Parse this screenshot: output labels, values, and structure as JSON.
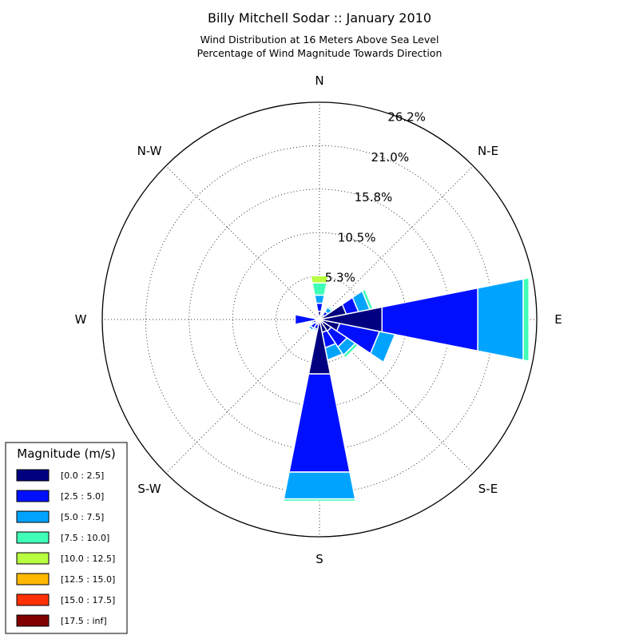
{
  "chart_data": {
    "type": "windrose",
    "title": "Billy Mitchell Sodar :: January 2010",
    "subtitle_lines": [
      "Wind Distribution at 16 Meters Above Sea Level",
      "Percentage of Wind Magnitude Towards Direction"
    ],
    "directions": [
      "N",
      "N-E",
      "E",
      "S-E",
      "S",
      "S-W",
      "W",
      "N-W"
    ],
    "ring_labels": [
      "5.3%",
      "10.5%",
      "15.8%",
      "21.0%",
      "26.2%"
    ],
    "ring_values": [
      5.25,
      10.5,
      15.75,
      21.0,
      26.25
    ],
    "r_max": 26.25,
    "legend": {
      "title": "Magnitude (m/s)",
      "entries": [
        "[0.0 : 2.5]",
        "[2.5 : 5.0]",
        "[5.0 : 7.5]",
        "[7.5 : 10.0]",
        "[10.0 : 12.5]",
        "[12.5 : 15.0]",
        "[15.0 : 17.5]",
        "[17.5 : inf]"
      ]
    },
    "colors": [
      "#000080",
      "#0010ff",
      "#00a4ff",
      "#40ffb7",
      "#b7ff40",
      "#ffb900",
      "#ff3000",
      "#800000"
    ],
    "sector_width_deg": 22.5,
    "sectors": [
      {
        "angle": 0,
        "stacks": [
          0.0,
          1.0,
          2.0,
          3.0,
          4.5,
          5.4
        ]
      },
      {
        "angle": 22.5,
        "stacks": [
          0.0,
          0.2,
          0.4,
          0.6,
          0.7
        ]
      },
      {
        "angle": 45,
        "stacks": [
          0.0,
          0.7,
          1.2,
          1.8,
          2.0
        ]
      },
      {
        "angle": 67.5,
        "stacks": [
          0.0,
          3.3,
          4.8,
          6.2,
          6.6
        ]
      },
      {
        "angle": 90,
        "stacks": [
          0.0,
          7.7,
          19.5,
          25.1,
          25.8
        ]
      },
      {
        "angle": 112.5,
        "stacks": [
          0.0,
          2.5,
          7.4,
          9.3
        ]
      },
      {
        "angle": 135,
        "stacks": [
          0.0,
          1.7,
          4.0,
          5.2,
          5.6
        ]
      },
      {
        "angle": 157.5,
        "stacks": [
          0.0,
          1.6,
          3.5,
          5.0
        ]
      },
      {
        "angle": 180,
        "stacks": [
          0.0,
          6.7,
          18.8,
          22.1,
          22.4
        ]
      },
      {
        "angle": 202.5,
        "stacks": [
          0.0,
          0.6,
          1.2,
          1.4
        ]
      },
      {
        "angle": 225,
        "stacks": [
          0.0,
          0.6,
          1.3,
          1.6,
          1.7
        ]
      },
      {
        "angle": 247.5,
        "stacks": [
          0.0,
          0.4,
          0.8,
          1.0
        ]
      },
      {
        "angle": 270,
        "stacks": [
          0.0,
          0.5,
          3.0
        ]
      },
      {
        "angle": 292.5,
        "stacks": [
          0.0,
          0.2,
          0.35
        ]
      },
      {
        "angle": 315,
        "stacks": [
          0.0,
          0.2,
          0.35
        ]
      },
      {
        "angle": 337.5,
        "stacks": [
          0.0,
          0.2,
          0.3
        ]
      }
    ]
  }
}
